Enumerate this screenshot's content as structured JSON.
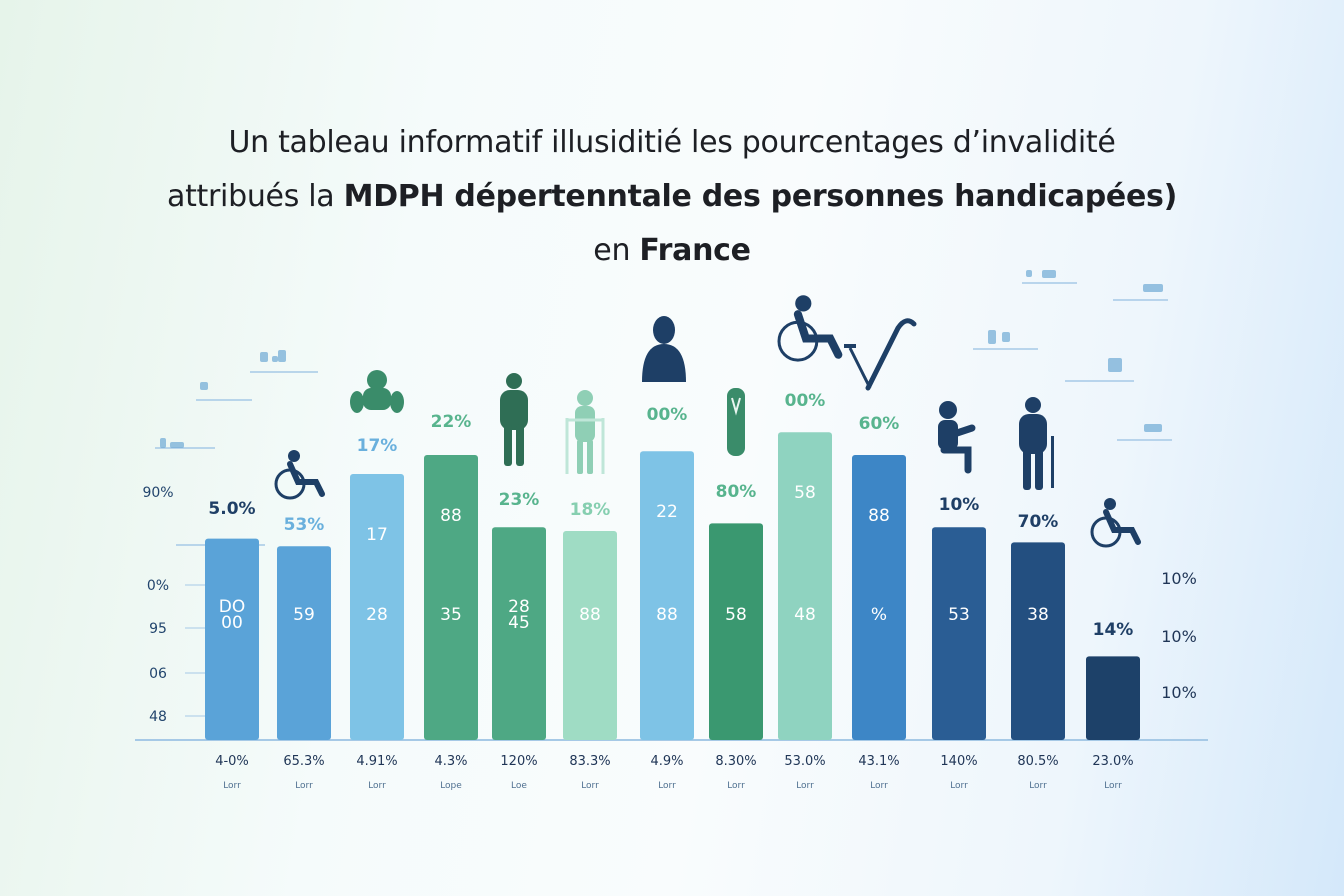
{
  "title": {
    "line1": "Un tableau informatif illusiditié les pourcentages d’invalidité",
    "line2_prefix": "attribués la ",
    "line2_bold": "MDPH dépertenntale des personnes handicapées)",
    "line3_prefix": "en ",
    "line3_bold": "France"
  },
  "chart_data": {
    "type": "bar",
    "title": "Un tableau informatif illusiditié les pourcentages d’invalidité attribués la MDPH dépertenntale des personnes handicapées) en France",
    "ylim": [
      0,
      100
    ],
    "y_axis_labels": [
      "90%",
      "0%",
      "95",
      "06",
      "48"
    ],
    "right_labels": [
      "10%",
      "10%",
      "10%"
    ],
    "bars": [
      {
        "value": 53,
        "top_label": "5.0%",
        "inner_top": "",
        "inner_bottom": "DO\n00",
        "bottom_label": "4-0%",
        "sub_label": "Lorr",
        "color": "#5aa3d8",
        "icon": "none"
      },
      {
        "value": 51,
        "top_label": "53%",
        "inner_top": "",
        "inner_bottom": "59",
        "bottom_label": "65.3%",
        "sub_label": "Lorr",
        "color": "#5aa3d8",
        "icon": "wheelchair-icon"
      },
      {
        "value": 70,
        "top_label": "17%",
        "inner_top": "17",
        "inner_bottom": "28",
        "bottom_label": "4.91%",
        "sub_label": "Lorr",
        "color": "#7ec3e6",
        "icon": "seated-person-icon"
      },
      {
        "value": 75,
        "top_label": "22%",
        "inner_top": "88",
        "inner_bottom": "35",
        "bottom_label": "4.3%",
        "sub_label": "Lope",
        "color": "#4ea884",
        "icon": "none"
      },
      {
        "value": 56,
        "top_label": "23%",
        "inner_top": "",
        "inner_bottom": "28\n45",
        "bottom_label": "120%",
        "sub_label": "Loe",
        "color": "#4ea884",
        "icon": "standing-person-icon"
      },
      {
        "value": 55,
        "top_label": "18%",
        "inner_top": "",
        "inner_bottom": "88",
        "bottom_label": "83.3%",
        "sub_label": "Lorr",
        "color": "#9fdcc4",
        "icon": "walker-person-icon"
      },
      {
        "value": 76,
        "top_label": "00%",
        "inner_top": "22",
        "inner_bottom": "88",
        "bottom_label": "4.9%",
        "sub_label": "Lorr",
        "color": "#7ec3e6",
        "icon": "person-bust-icon"
      },
      {
        "value": 57,
        "top_label": "80%",
        "inner_top": "",
        "inner_bottom": "58",
        "bottom_label": "8.30%",
        "sub_label": "Lorr",
        "color": "#3a9870",
        "icon": "prosthetic-leg-icon"
      },
      {
        "value": 81,
        "top_label": "00%",
        "inner_top": "58",
        "inner_bottom": "48",
        "bottom_label": "53.0%",
        "sub_label": "Lorr",
        "color": "#8fd3c0",
        "icon": "wheelchair-large-icon"
      },
      {
        "value": 75,
        "top_label": "60%",
        "inner_top": "88",
        "inner_bottom": "%",
        "bottom_label": "43.1%",
        "sub_label": "Lorr",
        "color": "#3d86c6",
        "icon": "crutch-icon"
      },
      {
        "value": 56,
        "top_label": "10%",
        "inner_top": "",
        "inner_bottom": "53",
        "bottom_label": "140%",
        "sub_label": "Lorr",
        "color": "#2a5d94",
        "icon": "seated-person-dark-icon"
      },
      {
        "value": 52,
        "top_label": "70%",
        "inner_top": "",
        "inner_bottom": "38",
        "bottom_label": "80.5%",
        "sub_label": "Lorr",
        "color": "#234f80",
        "icon": "cane-person-icon"
      },
      {
        "value": 22,
        "top_label": "14%",
        "inner_top": "",
        "inner_bottom": "",
        "bottom_label": "23.0%",
        "sub_label": "Lorr",
        "color": "#1d4169",
        "icon": "wheelchair-icon"
      }
    ]
  },
  "colors": {
    "top_label_blue": "#6ab0dd",
    "top_label_green": "#58b48e",
    "top_label_dark": "#1f3f66",
    "axis": "#a6c9e6",
    "figure_dark": "#1e3f66",
    "figure_green": "#3a8c6a",
    "figure_blue": "#4c88c4"
  }
}
